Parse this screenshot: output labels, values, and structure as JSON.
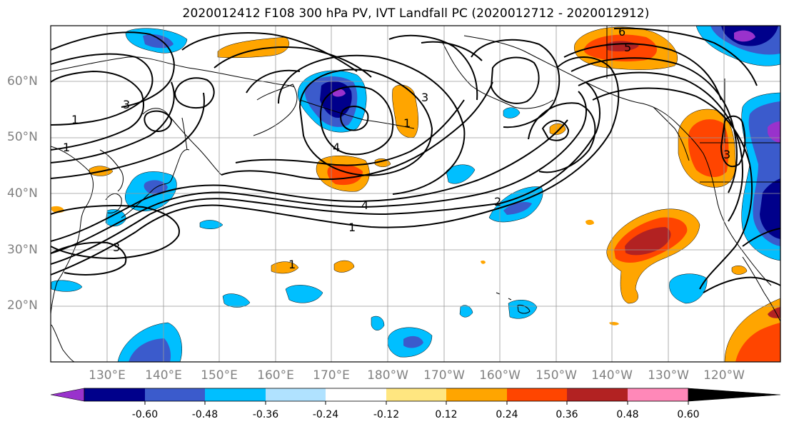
{
  "title": "2020012412 F108 300 hPa PV, IVT Landfall PC (2020012712 - 2020012912)",
  "lat_labels": [
    "60°N",
    "50°N",
    "40°N",
    "30°N",
    "20°N"
  ],
  "lon_labels": [
    "130°E",
    "140°E",
    "150°E",
    "160°E",
    "170°E",
    "180°W",
    "170°W",
    "160°W",
    "150°W",
    "140°W",
    "130°W",
    "120°W"
  ],
  "colorbar": {
    "ticks": [
      "-0.60",
      "-0.48",
      "-0.36",
      "-0.24",
      "-0.12",
      "0.12",
      "0.24",
      "0.36",
      "0.48",
      "0.60"
    ],
    "colors": [
      "#9932cc",
      "#00008b",
      "#3b5bcc",
      "#00bfff",
      "#b0e2ff",
      "#ffffff",
      "#ffe680",
      "#ffa500",
      "#ff4500",
      "#b22222",
      "#ff88b8"
    ]
  },
  "contour_labels": [
    "1",
    "1",
    "3",
    "3",
    "3",
    "1",
    "4",
    "4",
    "1",
    "2",
    "6",
    "5",
    "1",
    "3"
  ],
  "chart_data": {
    "type": "map",
    "projection": "cylindrical",
    "lon_range": [
      "120°E",
      "110°W"
    ],
    "lat_range": [
      "10°N",
      "70°N"
    ],
    "grid": true,
    "filled_field": "IVT Landfall PC",
    "contour_field": "300 hPa PV",
    "contour_levels": [
      1,
      2,
      3,
      4,
      5,
      6
    ],
    "colorbar_extends": "both",
    "colorbar_levels": [
      -0.6,
      -0.48,
      -0.36,
      -0.24,
      -0.12,
      0.12,
      0.24,
      0.36,
      0.48,
      0.6
    ]
  }
}
